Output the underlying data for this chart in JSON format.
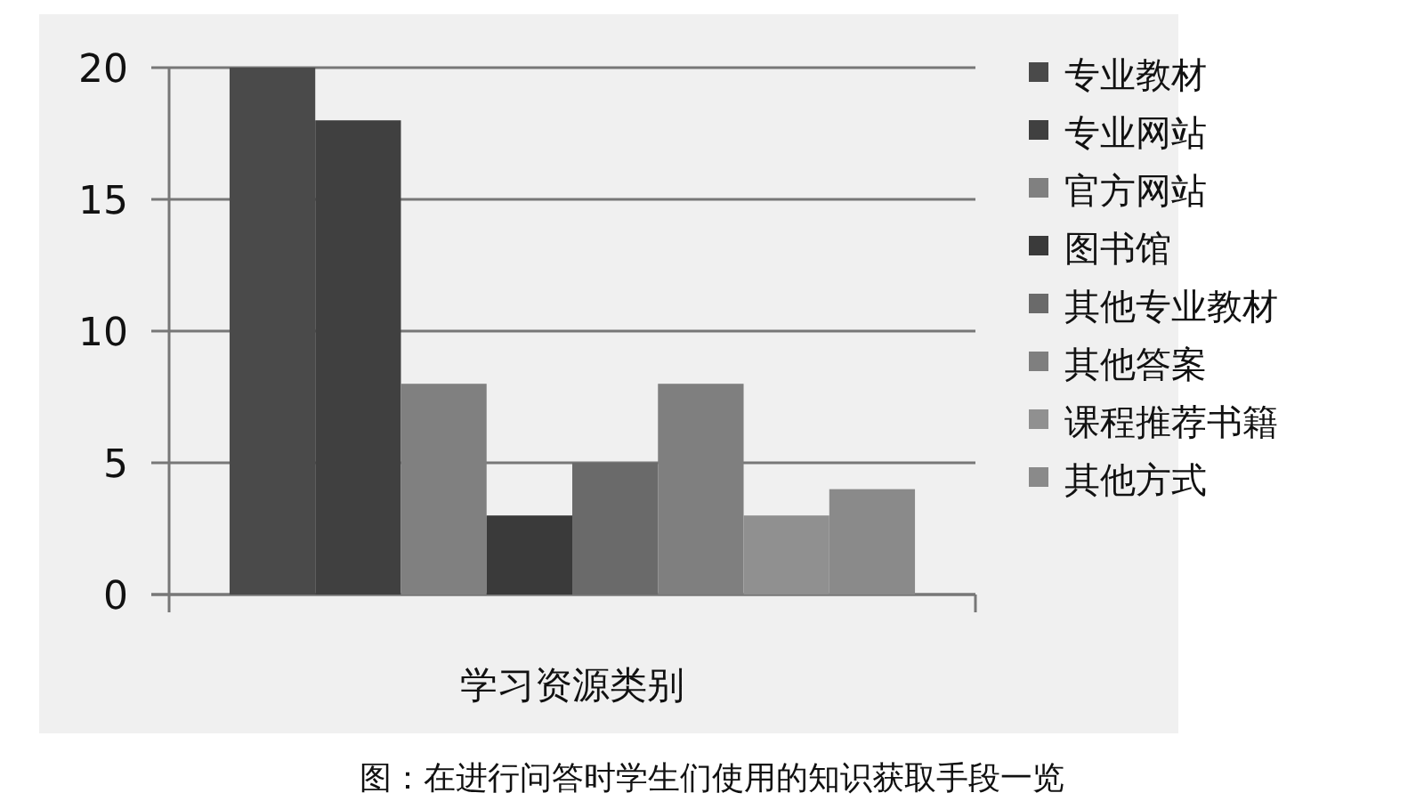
{
  "chart_data": {
    "type": "bar",
    "categories": [
      "学习资源类别"
    ],
    "series": [
      {
        "name": "专业教材",
        "color": "#4a4a4a",
        "values": [
          20
        ]
      },
      {
        "name": "专业网站",
        "color": "#404040",
        "values": [
          18
        ]
      },
      {
        "name": "官方网站",
        "color": "#808080",
        "values": [
          8
        ]
      },
      {
        "name": "图书馆",
        "color": "#3a3a3a",
        "values": [
          3
        ]
      },
      {
        "name": "其他专业教材",
        "color": "#6a6a6a",
        "values": [
          5
        ]
      },
      {
        "name": "其他答案",
        "color": "#7f7f7f",
        "values": [
          8
        ]
      },
      {
        "name": "课程推荐书籍",
        "color": "#909090",
        "values": [
          3
        ]
      },
      {
        "name": "其他方式",
        "color": "#8a8a8a",
        "values": [
          4
        ]
      }
    ],
    "ylim": [
      0,
      20
    ],
    "yticks": [
      0,
      5,
      10,
      15,
      20
    ],
    "grid": "y",
    "legend": "right",
    "annotations": [
      "图：在进行问答时学生们使用的知识获取手段一览"
    ]
  }
}
